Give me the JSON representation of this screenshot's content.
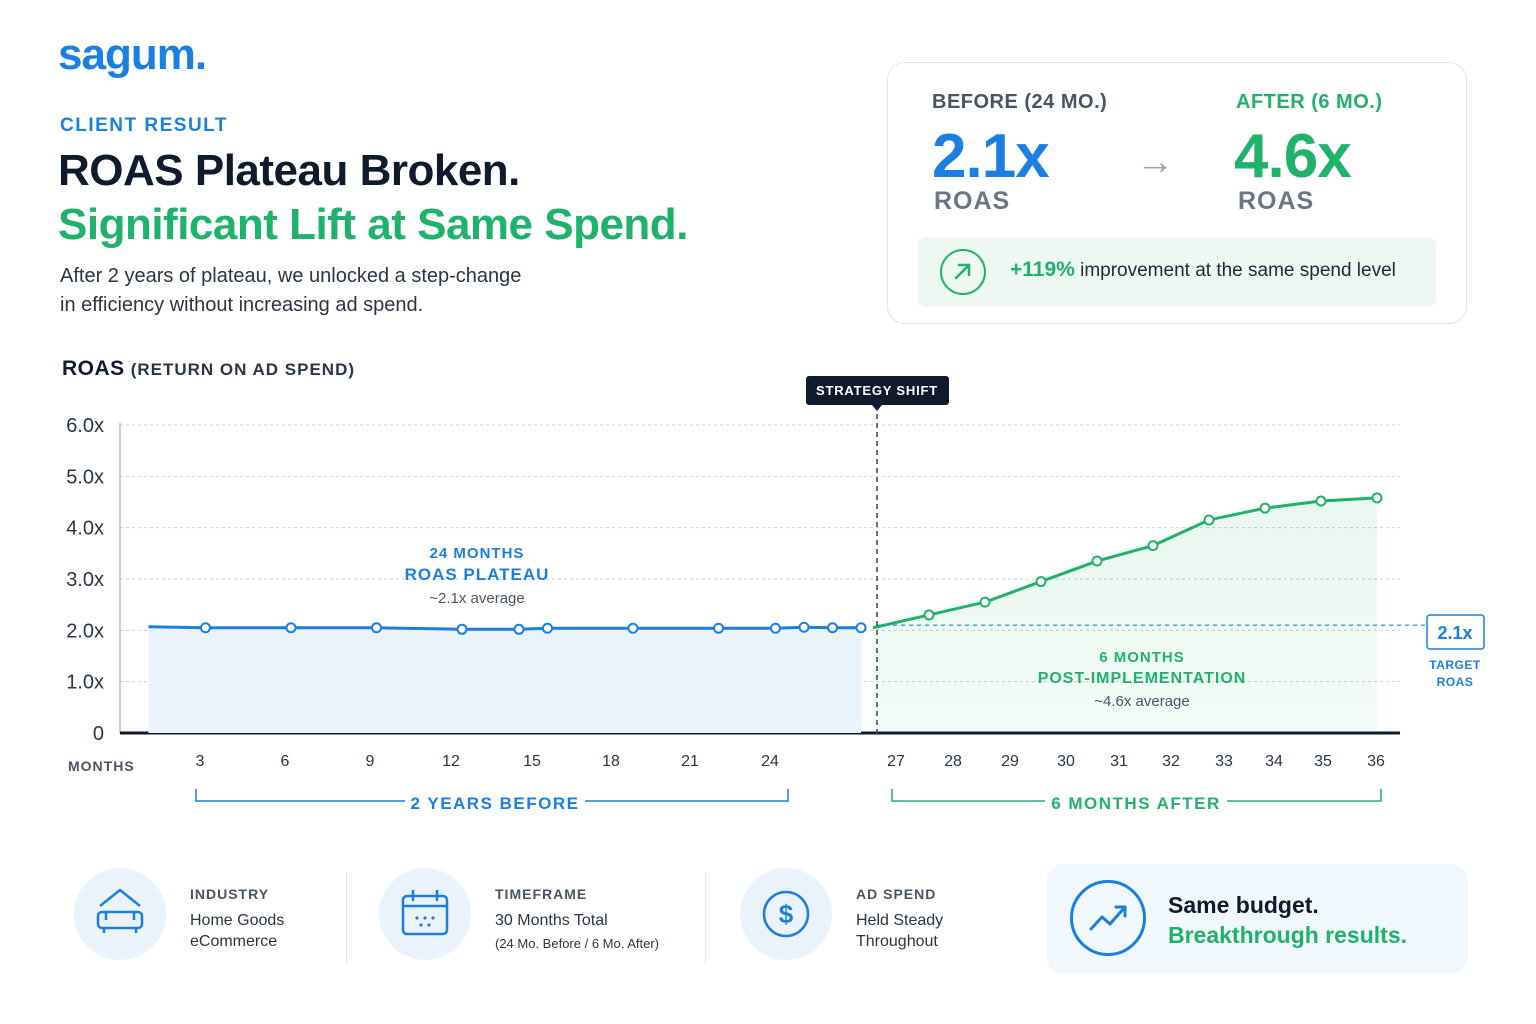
{
  "brand": {
    "logo": "sagum."
  },
  "header": {
    "eyebrow": "CLIENT RESULT",
    "title_line1": "ROAS Plateau Broken.",
    "title_line2": "Significant Lift at Same Spend.",
    "subtitle_line1": "After 2 years of plateau, we unlocked a step-change",
    "subtitle_line2": "in efficiency without increasing ad spend."
  },
  "comparison": {
    "before_label": "BEFORE (24 MO.)",
    "before_value": "2.1x",
    "before_unit": "ROAS",
    "after_label": "AFTER (6 MO.)",
    "after_value": "4.6x",
    "after_unit": "ROAS",
    "arrow": "→",
    "improvement_pct": "+119%",
    "improvement_text": " improvement at the same spend level"
  },
  "chart_header": {
    "title": "ROAS",
    "subtitle": "(RETURN ON AD SPEND)"
  },
  "chart_data": {
    "type": "line",
    "title": "ROAS",
    "subtitle": "(RETURN ON AD SPEND)",
    "xlabel": "MONTHS",
    "ylabel": "",
    "ylim": [
      0,
      6
    ],
    "y_ticks": [
      "0",
      "1.0x",
      "2.0x",
      "3.0x",
      "4.0x",
      "5.0x",
      "6.0x"
    ],
    "x_ticks_before": [
      "3",
      "6",
      "9",
      "12",
      "15",
      "18",
      "21",
      "24"
    ],
    "x_ticks_after": [
      "27",
      "28",
      "29",
      "30",
      "31",
      "32",
      "33",
      "34",
      "35",
      "36"
    ],
    "grid": true,
    "series": [
      {
        "name": "",
        "color": "#1a7fe0",
        "points": [
          [
            1,
            2.07
          ],
          [
            3,
            2.05
          ],
          [
            6,
            2.05
          ],
          [
            9,
            2.05
          ],
          [
            12,
            2.02
          ],
          [
            14,
            2.02
          ],
          [
            15,
            2.04
          ],
          [
            18,
            2.04
          ],
          [
            21,
            2.04
          ],
          [
            23,
            2.04
          ],
          [
            24,
            2.06
          ],
          [
            25,
            2.05
          ],
          [
            26,
            2.05
          ]
        ]
      },
      {
        "name": "",
        "color": "#1fb26b",
        "points": [
          [
            26,
            2.05
          ],
          [
            27,
            2.3
          ],
          [
            28,
            2.55
          ],
          [
            29,
            2.95
          ],
          [
            30,
            3.35
          ],
          [
            31,
            3.65
          ],
          [
            32,
            4.15
          ],
          [
            33,
            4.38
          ],
          [
            34,
            4.52
          ],
          [
            35,
            4.58
          ]
        ]
      }
    ],
    "target": {
      "value": 2.1,
      "label": "2.1x",
      "caption_line1": "TARGET",
      "caption_line2": "ROAS"
    },
    "strategy_shift_label": "STRATEGY SHIFT",
    "annotations": {
      "before_line1": "24 MONTHS",
      "before_line2": "ROAS PLATEAU",
      "before_line3": "~2.1x average",
      "after_line1": "6 MONTHS",
      "after_line2": "POST-IMPLEMENTATION",
      "after_line3": "~4.6x average"
    },
    "bracket_before": "2 YEARS BEFORE",
    "bracket_after": "6 MONTHS AFTER"
  },
  "stats": [
    {
      "label": "INDUSTRY",
      "line1": "Home Goods",
      "line2": "eCommerce",
      "icon": "sofa-icon"
    },
    {
      "label": "TIMEFRAME",
      "line1": "30 Months Total",
      "line2": "(24 Mo. Before / 6 Mo. After)",
      "icon": "calendar-icon"
    },
    {
      "label": "AD SPEND",
      "line1": "Held Steady",
      "line2": "Throughout",
      "icon": "dollar-icon"
    }
  ],
  "callout": {
    "line1": "Same budget.",
    "line2": "Breakthrough results.",
    "icon": "trending-up-icon"
  },
  "colors": {
    "blue": "#1a7fe0",
    "green": "#1fb26b",
    "navy": "#0f1b2d"
  }
}
